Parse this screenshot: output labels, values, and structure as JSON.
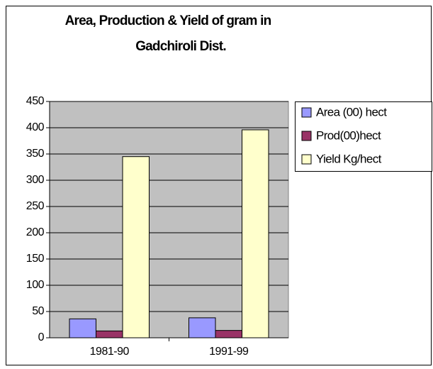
{
  "chart_data": {
    "type": "bar",
    "title": [
      "Area, Production & Yield of gram in",
      "Gadchiroli Dist."
    ],
    "categories": [
      "1981-90",
      "1991-99"
    ],
    "series": [
      {
        "name": "Area (00) hect",
        "color": "#9999ff",
        "values": [
          36,
          38
        ]
      },
      {
        "name": "Prod(00)hect",
        "color": "#993366",
        "values": [
          13,
          14
        ]
      },
      {
        "name": "Yield Kg/hect",
        "color": "#ffffcc",
        "values": [
          345,
          396
        ]
      }
    ],
    "ylim": [
      0,
      450
    ],
    "yticks": [
      0,
      50,
      100,
      150,
      200,
      250,
      300,
      350,
      400,
      450
    ],
    "grid": true,
    "legend": "right"
  }
}
